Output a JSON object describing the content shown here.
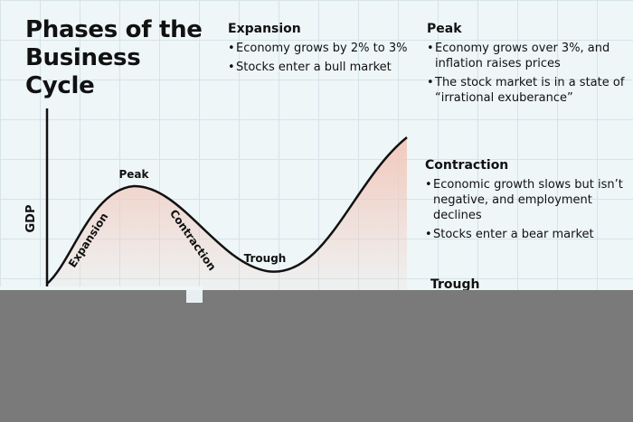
{
  "title": "Phases of the Business Cycle",
  "sections": {
    "expansion": {
      "heading": "Expansion",
      "bullets": [
        "Economy grows by 2% to 3%",
        "Stocks enter a bull market"
      ]
    },
    "peak": {
      "heading": "Peak",
      "bullets": [
        "Economy grows over 3%, and inflation raises prices",
        "The stock market is in a state of “irrational exuberance”"
      ]
    },
    "contraction": {
      "heading": "Contraction",
      "bullets": [
        "Economic growth slows but isn’t negative, and employment declines",
        "Stocks enter a bear market"
      ]
    },
    "trough": {
      "heading": "Trough"
    }
  },
  "diagram": {
    "y_axis_label": "GDP",
    "labels": {
      "expansion": "Expansion",
      "peak": "Peak",
      "contraction": "Contraction",
      "trough": "Trough"
    },
    "colors": {
      "fill_top": "#f2c9bd",
      "curve": "#111111",
      "background": "#eef6f8",
      "grid": "#d6e3e8",
      "overlay": "#7a7a7a"
    }
  }
}
